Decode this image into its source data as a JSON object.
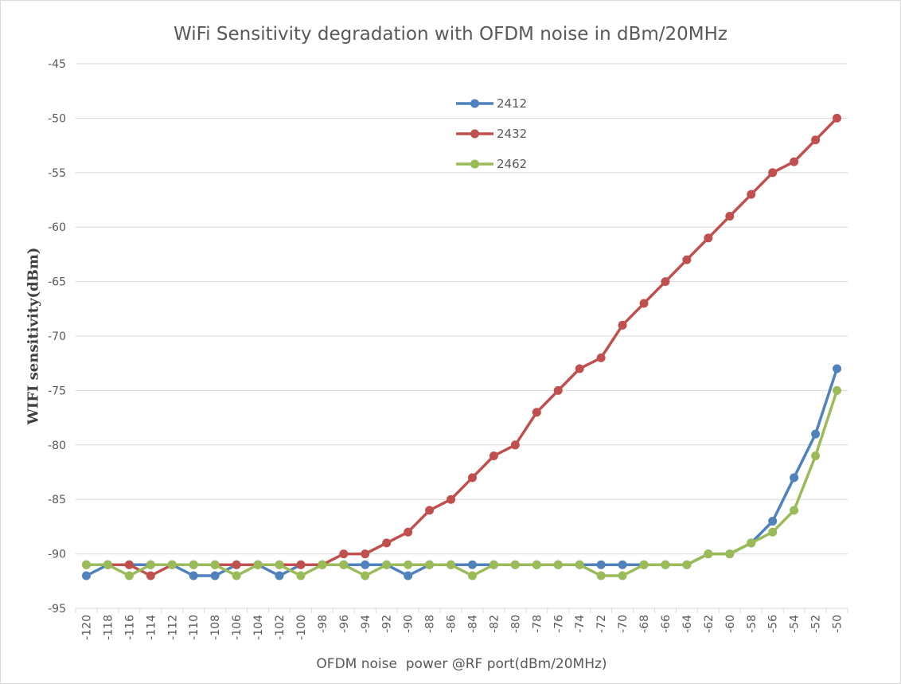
{
  "chart_data": {
    "type": "line",
    "title": "WiFi Sensitivity degradation with OFDM noise in dBm/20MHz",
    "xlabel": "OFDM noise  power @RF port(dBm/20MHz)",
    "ylabel": "WIFI sensitivity(dBm)",
    "ylim": [
      -95,
      -45
    ],
    "yticks": [
      -45,
      -50,
      -55,
      -60,
      -65,
      -70,
      -75,
      -80,
      -85,
      -90,
      -95
    ],
    "x": [
      -120,
      -118,
      -116,
      -114,
      -112,
      -110,
      -108,
      -106,
      -104,
      -102,
      -100,
      -98,
      -96,
      -94,
      -92,
      -90,
      -88,
      -86,
      -84,
      -82,
      -80,
      -78,
      -76,
      -74,
      -72,
      -70,
      -68,
      -66,
      -64,
      -62,
      -60,
      -58,
      -56,
      -54,
      -52,
      -50
    ],
    "grid": true,
    "legend_position": "top-center",
    "series": [
      {
        "name": "2412",
        "color": "#4f81bd",
        "values": [
          -92,
          -91,
          -91,
          -91,
          -91,
          -92,
          -92,
          -91,
          -91,
          -92,
          -91,
          -91,
          -91,
          -91,
          -91,
          -92,
          -91,
          -91,
          -91,
          -91,
          -91,
          -91,
          -91,
          -91,
          -91,
          -91,
          -91,
          -91,
          -91,
          -90,
          -90,
          -89,
          -87,
          -83,
          -79,
          -73
        ]
      },
      {
        "name": "2432",
        "color": "#c0504d",
        "values": [
          -91,
          -91,
          -91,
          -92,
          -91,
          -91,
          -91,
          -91,
          -91,
          -91,
          -91,
          -91,
          -90,
          -90,
          -89,
          -88,
          -86,
          -85,
          -83,
          -81,
          -80,
          -77,
          -75,
          -73,
          -72,
          -69,
          -67,
          -65,
          -63,
          -61,
          -59,
          -57,
          -55,
          -54,
          -52,
          -50
        ]
      },
      {
        "name": "2462",
        "color": "#9bbb59",
        "values": [
          -91,
          -91,
          -92,
          -91,
          -91,
          -91,
          -91,
          -92,
          -91,
          -91,
          -92,
          -91,
          -91,
          -92,
          -91,
          -91,
          -91,
          -91,
          -92,
          -91,
          -91,
          -91,
          -91,
          -91,
          -92,
          -92,
          -91,
          -91,
          -91,
          -90,
          -90,
          -89,
          -88,
          -86,
          -81,
          -75
        ]
      }
    ]
  }
}
